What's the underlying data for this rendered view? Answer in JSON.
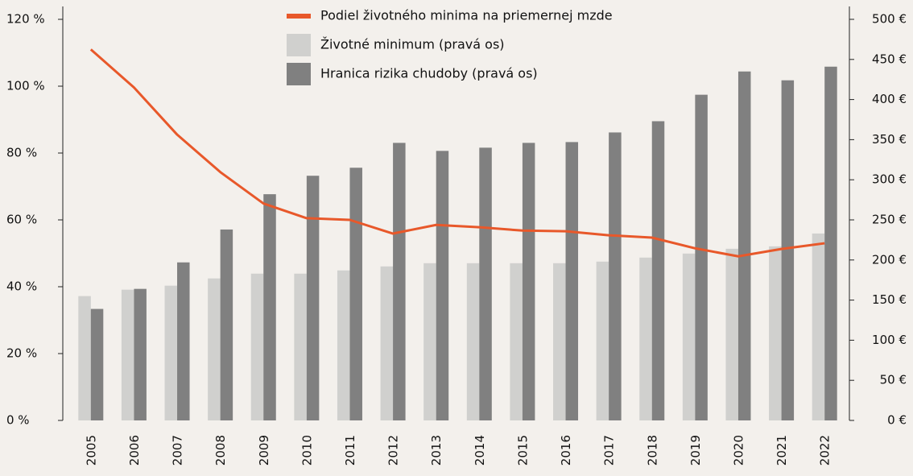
{
  "chart_data": {
    "type": "bar_line",
    "categories": [
      "2005",
      "2006",
      "2007",
      "2008",
      "2009",
      "2010",
      "2011",
      "2012",
      "2013",
      "2014",
      "2015",
      "2016",
      "2017",
      "2018",
      "2019",
      "2020",
      "2021",
      "2022"
    ],
    "series": [
      {
        "name": "Podiel životného minima na priemernej mzde",
        "type": "line",
        "color": "#e8582a",
        "axis": "y",
        "values": [
          111,
          99.6,
          85.5,
          74.3,
          64.9,
          60.5,
          60.0,
          55.9,
          58.5,
          57.8,
          56.8,
          56.6,
          55.4,
          54.7,
          51.5,
          49.1,
          51.3,
          53.0
        ]
      },
      {
        "name": "Životné minimum (pravá os)",
        "type": "bar",
        "color": "#d0d0ce",
        "axis": "y2",
        "values": [
          155,
          163,
          168,
          177,
          183,
          183,
          187,
          192,
          196,
          196,
          196,
          196,
          198,
          203,
          208,
          214,
          217,
          233
        ]
      },
      {
        "name": "Hranica rizika chudoby (pravá os)",
        "type": "bar",
        "color": "#808080",
        "axis": "y2",
        "values": [
          139,
          164,
          197,
          238,
          282,
          305,
          315,
          346,
          336,
          340,
          346,
          347,
          359,
          373,
          406,
          435,
          424,
          441
        ]
      }
    ],
    "ylim": [
      0,
      120
    ],
    "yticks": [
      {
        "value": 0,
        "label": "0 %"
      },
      {
        "value": 20,
        "label": "20 %"
      },
      {
        "value": 40,
        "label": "40 %"
      },
      {
        "value": 60,
        "label": "60 %"
      },
      {
        "value": 80,
        "label": "80 %"
      },
      {
        "value": 100,
        "label": "100 %"
      },
      {
        "value": 120,
        "label": "120 %"
      }
    ],
    "y2lim": [
      0,
      500
    ],
    "y2ticks": [
      {
        "value": 0,
        "label": "0 €"
      },
      {
        "value": 50,
        "label": "50 €"
      },
      {
        "value": 100,
        "label": "100 €"
      },
      {
        "value": 150,
        "label": "150 €"
      },
      {
        "value": 200,
        "label": "200 €"
      },
      {
        "value": 250,
        "label": "250 €"
      },
      {
        "value": 300,
        "label": "300 €"
      },
      {
        "value": 350,
        "label": "350 €"
      },
      {
        "value": 400,
        "label": "400 €"
      },
      {
        "value": 450,
        "label": "450 €"
      },
      {
        "value": 500,
        "label": "500 €"
      }
    ],
    "grid": false,
    "legend": "top"
  }
}
